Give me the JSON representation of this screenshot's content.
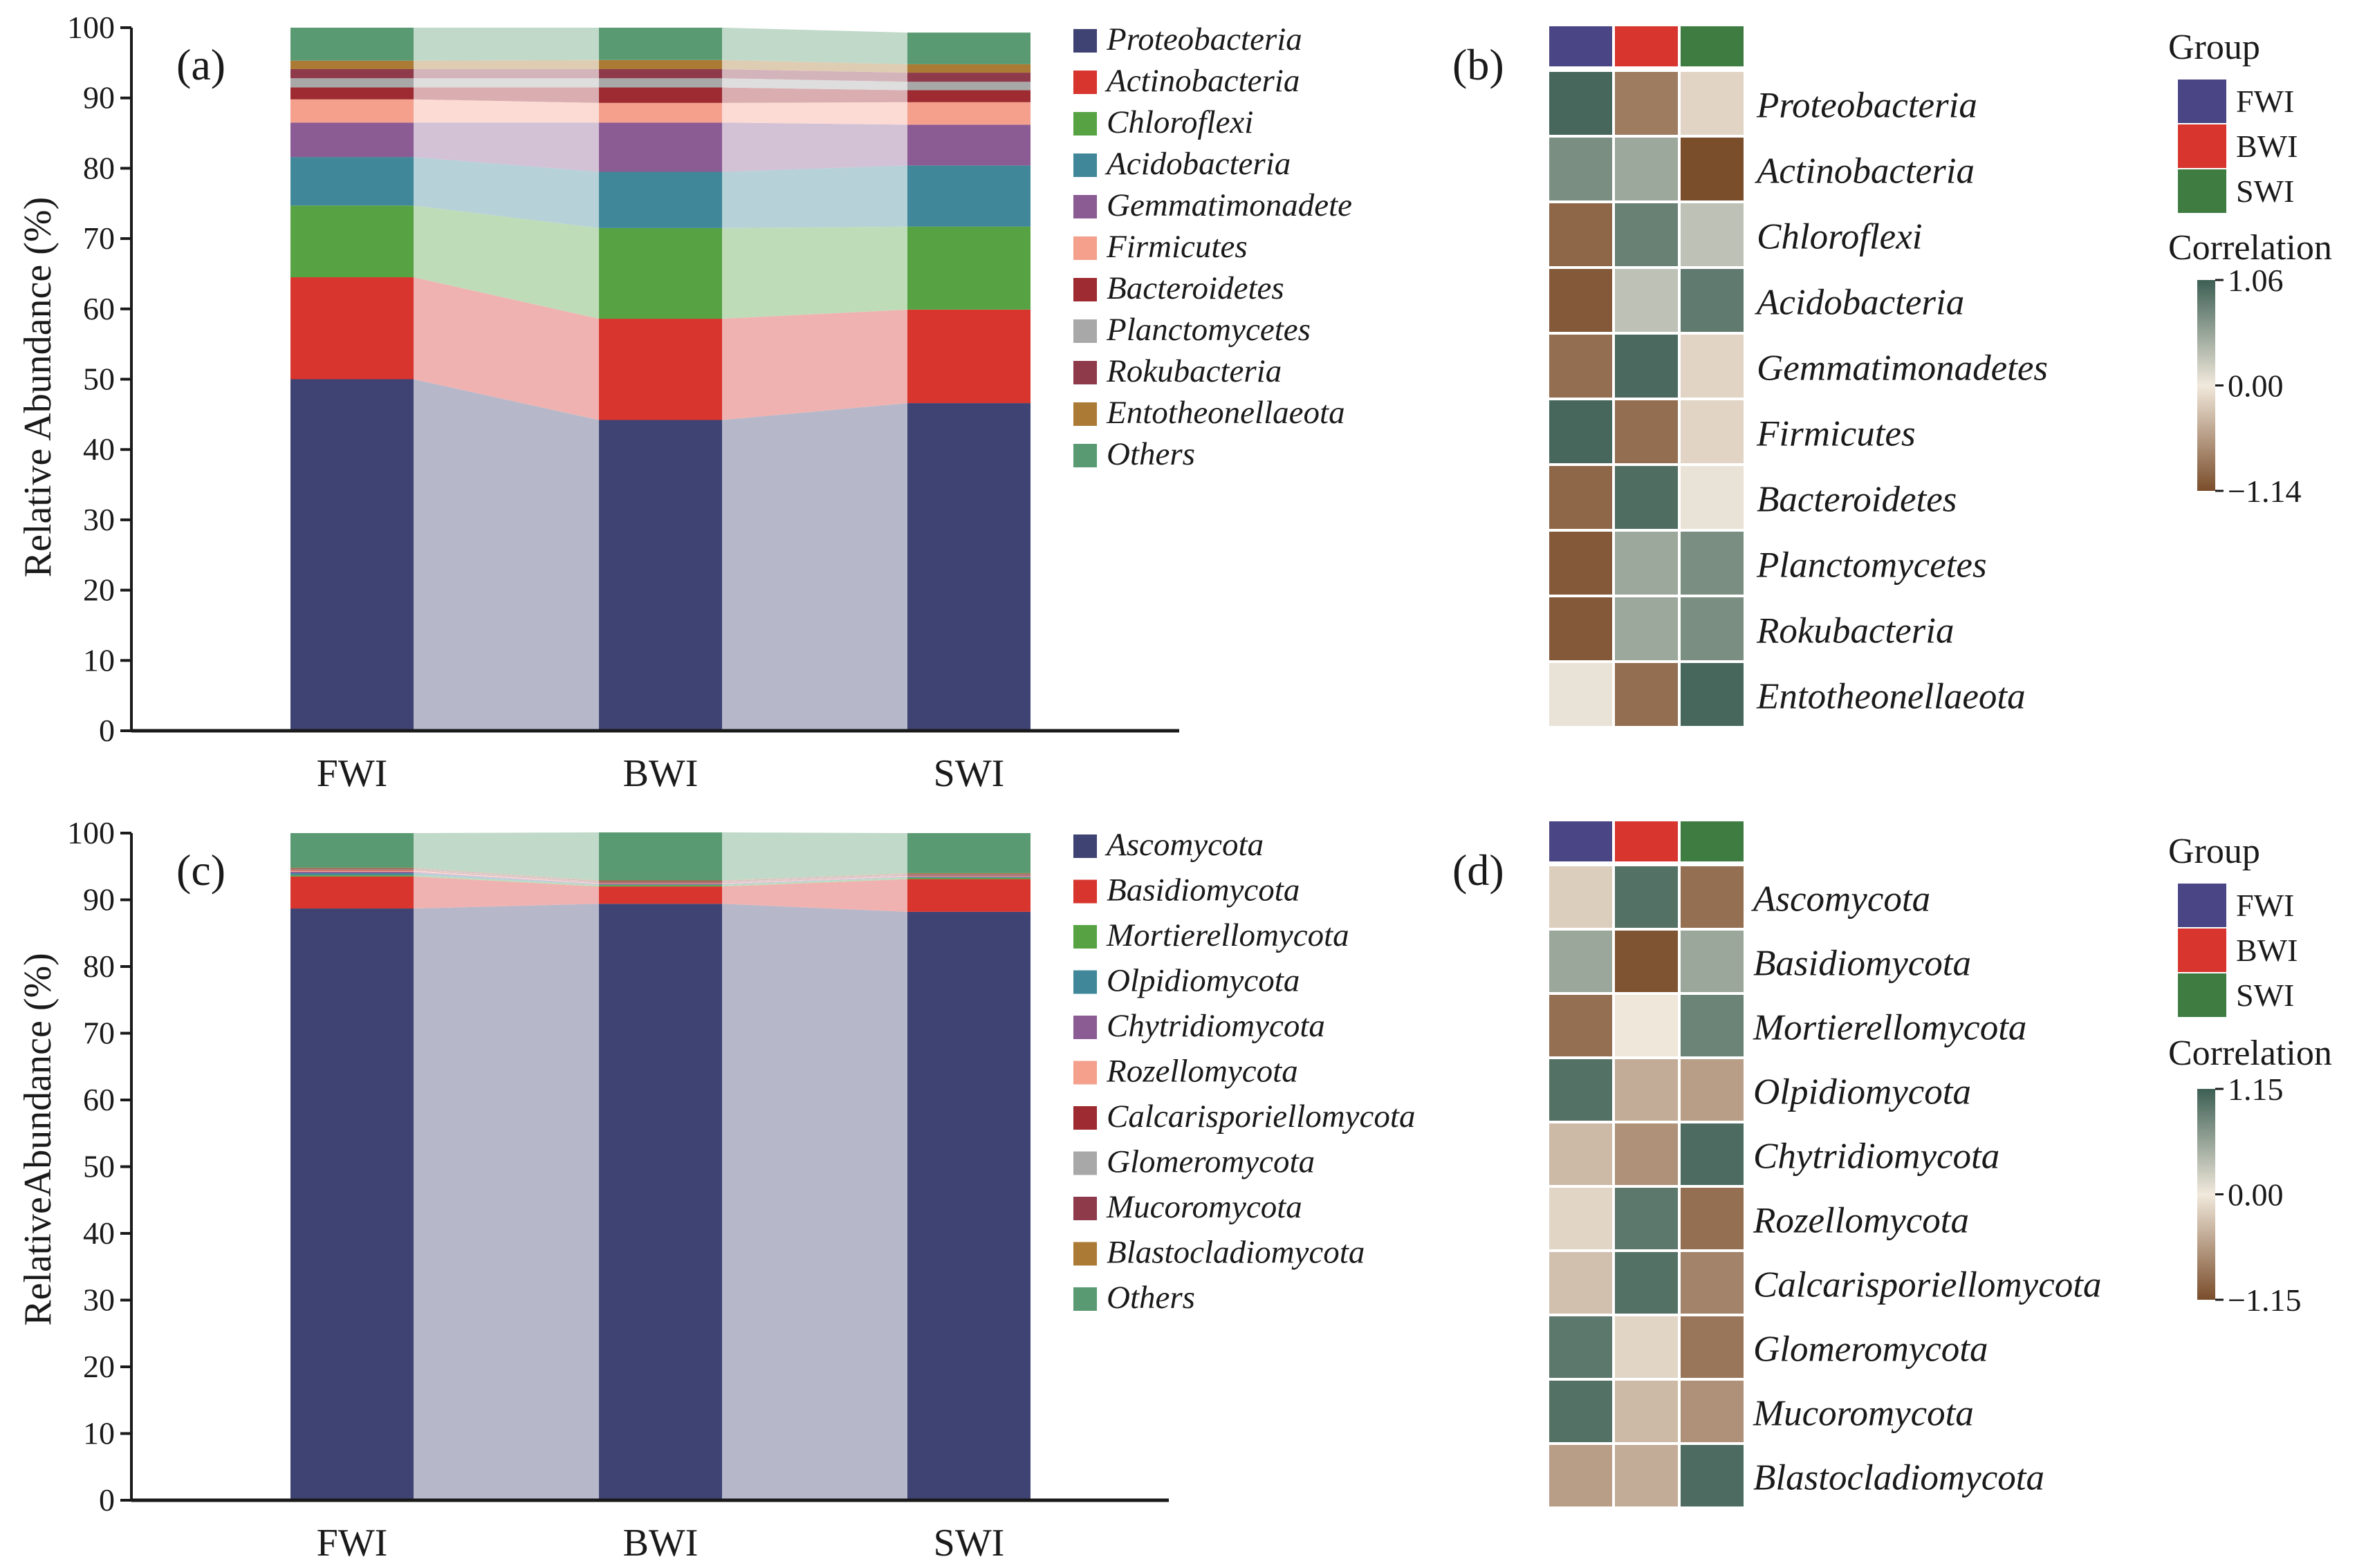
{
  "figure": {
    "panel_labels": {
      "a": "(a)",
      "b": "(b)",
      "c": "(c)",
      "d": "(d)"
    }
  },
  "chart_data": [
    {
      "panel": "a",
      "type": "bar",
      "subtype": "stacked-alluvial",
      "ylabel": "Relative Abundance (%)",
      "ylim": [
        0,
        100
      ],
      "yticks": [
        0,
        10,
        20,
        30,
        40,
        50,
        60,
        70,
        80,
        90,
        100
      ],
      "categories": [
        "FWI",
        "BWI",
        "SWI"
      ],
      "series": [
        {
          "name": "Proteobacteria",
          "color": "#3f4373",
          "values": [
            50.0,
            44.2,
            46.6
          ]
        },
        {
          "name": "Actinobacteria",
          "color": "#d7352e",
          "values": [
            14.5,
            14.4,
            13.3
          ]
        },
        {
          "name": "Chloroflexi",
          "color": "#57a344",
          "values": [
            10.2,
            12.9,
            11.8
          ]
        },
        {
          "name": "Acidobacteria",
          "color": "#3f8799",
          "values": [
            6.9,
            8.0,
            8.7
          ]
        },
        {
          "name": "Gemmatimonadete",
          "color": "#8b5b94",
          "values": [
            4.9,
            7.0,
            5.8
          ]
        },
        {
          "name": "Firmicutes",
          "color": "#f4a08c",
          "values": [
            3.3,
            2.8,
            3.2
          ]
        },
        {
          "name": "Bacteroidetes",
          "color": "#9d2b31",
          "values": [
            1.7,
            2.2,
            1.7
          ]
        },
        {
          "name": "Planctomycetes",
          "color": "#a8a8a8",
          "values": [
            1.3,
            1.3,
            1.2
          ]
        },
        {
          "name": "Rokubacteria",
          "color": "#8e3a4b",
          "values": [
            1.3,
            1.3,
            1.3
          ]
        },
        {
          "name": "Entotheonellaeota",
          "color": "#ab7b36",
          "values": [
            1.2,
            1.3,
            1.2
          ]
        },
        {
          "name": "Others",
          "color": "#5a9a72",
          "values": [
            4.7,
            4.6,
            4.5
          ]
        }
      ]
    },
    {
      "panel": "b",
      "type": "heatmap",
      "columns": [
        "FWI",
        "BWI",
        "SWI"
      ],
      "rows": [
        "Proteobacteria",
        "Actinobacteria",
        "Chloroflexi",
        "Acidobacteria",
        "Gemmatimonadetes",
        "Firmicutes",
        "Bacteroidetes",
        "Planctomycetes",
        "Rokubacteria",
        "Entotheonellaeota"
      ],
      "values": [
        [
          1.0,
          -0.8,
          -0.15
        ],
        [
          0.7,
          0.5,
          -1.14
        ],
        [
          -0.95,
          0.8,
          0.3
        ],
        [
          -1.05,
          0.3,
          0.85
        ],
        [
          -0.9,
          0.98,
          -0.15
        ],
        [
          1.0,
          -0.9,
          -0.15
        ],
        [
          -0.95,
          0.95,
          0.05
        ],
        [
          -1.05,
          0.5,
          0.7
        ],
        [
          -1.05,
          0.5,
          0.7
        ],
        [
          0.05,
          -0.9,
          1.0
        ]
      ],
      "colorbar": {
        "title": "Correlation",
        "min": -1.14,
        "max": 1.06,
        "ticks": [
          "1.06",
          "0.00",
          "−1.14"
        ]
      },
      "legend": {
        "title": "Group",
        "items": [
          {
            "label": "FWI",
            "color": "#4a4686"
          },
          {
            "label": "BWI",
            "color": "#d7352e"
          },
          {
            "label": "SWI",
            "color": "#3f7c42"
          }
        ]
      }
    },
    {
      "panel": "c",
      "type": "bar",
      "subtype": "stacked-alluvial",
      "ylabel": "RelativeAbundance (%)",
      "ylim": [
        0,
        100
      ],
      "yticks": [
        0,
        10,
        20,
        30,
        40,
        50,
        60,
        70,
        80,
        90,
        100
      ],
      "categories": [
        "FWI",
        "BWI",
        "SWI"
      ],
      "series": [
        {
          "name": "Ascomycota",
          "color": "#3f4373",
          "values": [
            88.7,
            89.4,
            88.2
          ]
        },
        {
          "name": "Basidiomycota",
          "color": "#d7352e",
          "values": [
            4.8,
            2.6,
            4.9
          ]
        },
        {
          "name": "Mortierellomycota",
          "color": "#57a344",
          "values": [
            0.2,
            0.2,
            0.2
          ]
        },
        {
          "name": "Olpidiomycota",
          "color": "#3f8799",
          "values": [
            0.3,
            0.1,
            0.1
          ]
        },
        {
          "name": "Chytridiomycota",
          "color": "#8b5b94",
          "values": [
            0.2,
            0.1,
            0.1
          ]
        },
        {
          "name": "Rozellomycota",
          "color": "#f4a08c",
          "values": [
            0.2,
            0.1,
            0.1
          ]
        },
        {
          "name": "Calcarisporiellomycota",
          "color": "#9d2b31",
          "values": [
            0.1,
            0.1,
            0.1
          ]
        },
        {
          "name": "Glomeromycota",
          "color": "#a8a8a8",
          "values": [
            0.1,
            0.1,
            0.1
          ]
        },
        {
          "name": "Mucoromycota",
          "color": "#8e3a4b",
          "values": [
            0.1,
            0.1,
            0.1
          ]
        },
        {
          "name": "Blastocladiomycota",
          "color": "#ab7b36",
          "values": [
            0.1,
            0.1,
            0.1
          ]
        },
        {
          "name": "Others",
          "color": "#5a9a72",
          "values": [
            5.2,
            7.2,
            6.0
          ]
        }
      ]
    },
    {
      "panel": "d",
      "type": "heatmap",
      "columns": [
        "FWI",
        "BWI",
        "SWI"
      ],
      "rows": [
        "Ascomycota",
        "Basidiomycota",
        "Mortierellomycota",
        "Olpidiomycota",
        "Chytridiomycota",
        "Rozellomycota",
        "Calcarisporiellomycota",
        "Glomeromycota",
        "Mucoromycota",
        "Blastocladiomycota"
      ],
      "values": [
        [
          -0.2,
          1.0,
          -0.9
        ],
        [
          0.55,
          -1.1,
          0.55
        ],
        [
          -0.9,
          0.02,
          0.85
        ],
        [
          1.0,
          -0.45,
          -0.55
        ],
        [
          -0.35,
          -0.65,
          1.05
        ],
        [
          -0.15,
          0.95,
          -0.9
        ],
        [
          -0.3,
          1.0,
          -0.75
        ],
        [
          0.95,
          -0.15,
          -0.85
        ],
        [
          1.0,
          -0.35,
          -0.65
        ],
        [
          -0.55,
          -0.45,
          1.05
        ]
      ],
      "colorbar": {
        "title": "Correlation",
        "min": -1.15,
        "max": 1.15,
        "ticks": [
          "1.15",
          "0.00",
          "−1.15"
        ]
      },
      "legend": {
        "title": "Group",
        "items": [
          {
            "label": "FWI",
            "color": "#4a4686"
          },
          {
            "label": "BWI",
            "color": "#d7352e"
          },
          {
            "label": "SWI",
            "color": "#3f7c42"
          }
        ]
      }
    }
  ]
}
